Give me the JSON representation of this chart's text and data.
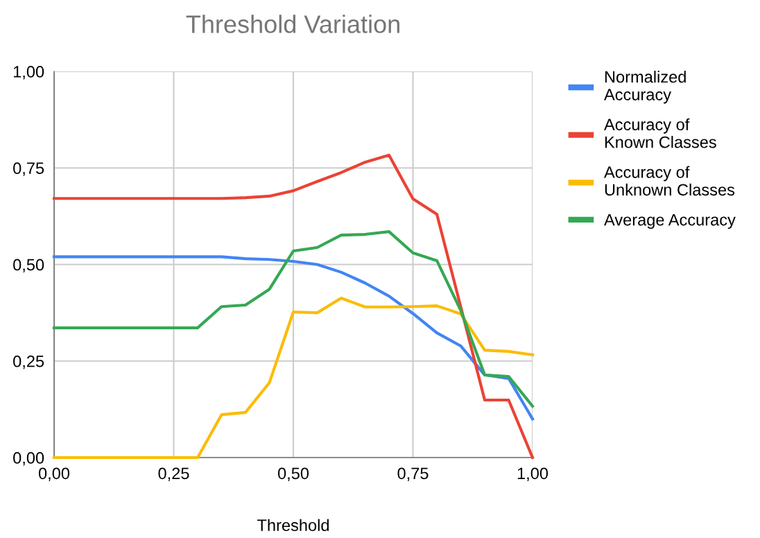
{
  "chart_data": {
    "type": "line",
    "title": "Threshold Variation",
    "xlabel": "Threshold",
    "x": [
      0,
      0.05,
      0.1,
      0.15,
      0.2,
      0.25,
      0.3,
      0.35,
      0.4,
      0.45,
      0.5,
      0.55,
      0.6,
      0.65,
      0.7,
      0.75,
      0.8,
      0.85,
      0.9,
      0.95,
      1.0
    ],
    "series": [
      {
        "name": "Normalized Accuracy",
        "color": "#4285f4",
        "values": [
          0.52,
          0.52,
          0.52,
          0.52,
          0.52,
          0.52,
          0.52,
          0.52,
          0.515,
          0.513,
          0.508,
          0.5,
          0.48,
          0.452,
          0.418,
          0.373,
          0.323,
          0.289,
          0.214,
          0.205,
          0.1
        ]
      },
      {
        "name": "Accuracy of Known Classes",
        "color": "#ea4335",
        "values": [
          0.671,
          0.671,
          0.671,
          0.671,
          0.671,
          0.671,
          0.671,
          0.671,
          0.673,
          0.677,
          0.691,
          0.715,
          0.738,
          0.765,
          0.783,
          0.67,
          0.63,
          0.39,
          0.149,
          0.149,
          0
        ]
      },
      {
        "name": "Accuracy of Unknown Classes",
        "color": "#fbbc04",
        "values": [
          0,
          0,
          0,
          0,
          0,
          0,
          0,
          0.111,
          0.117,
          0.194,
          0.377,
          0.375,
          0.413,
          0.39,
          0.39,
          0.391,
          0.393,
          0.372,
          0.278,
          0.275,
          0.266
        ]
      },
      {
        "name": "Average Accuracy",
        "color": "#34a853",
        "values": [
          0.336,
          0.336,
          0.336,
          0.336,
          0.336,
          0.336,
          0.336,
          0.391,
          0.395,
          0.436,
          0.535,
          0.544,
          0.576,
          0.578,
          0.585,
          0.53,
          0.51,
          0.381,
          0.214,
          0.21,
          0.133
        ]
      }
    ],
    "xlim": [
      0,
      1
    ],
    "ylim": [
      0,
      1
    ],
    "xticks": [
      {
        "value": 0,
        "label": "0,00"
      },
      {
        "value": 0.25,
        "label": "0,25"
      },
      {
        "value": 0.5,
        "label": "0,50"
      },
      {
        "value": 0.75,
        "label": "0,75"
      },
      {
        "value": 1,
        "label": "1,00"
      }
    ],
    "yticks": [
      {
        "value": 0,
        "label": "0,00"
      },
      {
        "value": 0.25,
        "label": "0,25"
      },
      {
        "value": 0.5,
        "label": "0,50"
      },
      {
        "value": 0.75,
        "label": "0,75"
      },
      {
        "value": 1,
        "label": "1,00"
      }
    ],
    "grid": true,
    "legend": "top right"
  }
}
